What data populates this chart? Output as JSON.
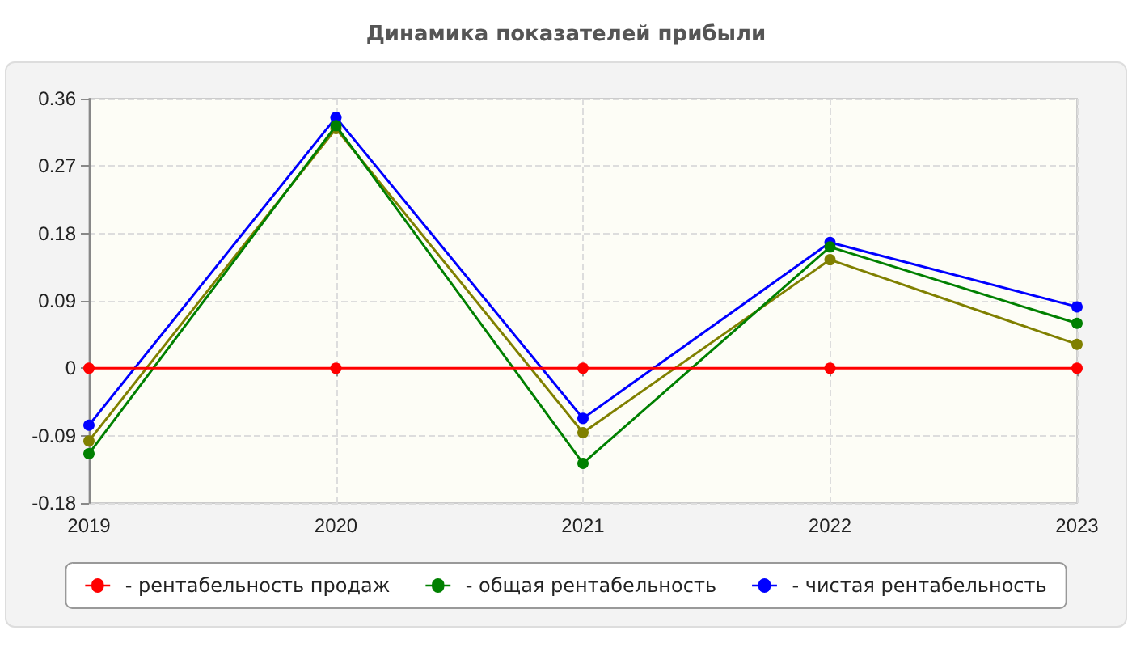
{
  "chart_data": {
    "type": "line",
    "title": "Динамика показателей прибыли",
    "categories": [
      "2019",
      "2020",
      "2021",
      "2022",
      "2023"
    ],
    "series": [
      {
        "name": "- рентабельность продаж",
        "color": "#ff0000",
        "values": [
          0,
          0,
          0,
          0,
          0
        ]
      },
      {
        "name": "- общая рентабельность",
        "color": "#008000",
        "values": [
          -0.114,
          0.324,
          -0.127,
          0.162,
          0.06
        ]
      },
      {
        "name": "- чистая рентабельность",
        "color": "#0000ff",
        "values": [
          -0.076,
          0.335,
          -0.067,
          0.168,
          0.082
        ]
      },
      {
        "color": "#808000",
        "values": [
          -0.097,
          0.32,
          -0.086,
          0.145,
          0.032
        ]
      }
    ],
    "ylim": [
      -0.18,
      0.36
    ],
    "yticks": [
      -0.18,
      -0.09,
      0,
      0.09,
      0.18,
      0.27,
      0.36
    ],
    "grid": true,
    "legend": "bottom",
    "marker": "circle",
    "line_style": "solid"
  }
}
